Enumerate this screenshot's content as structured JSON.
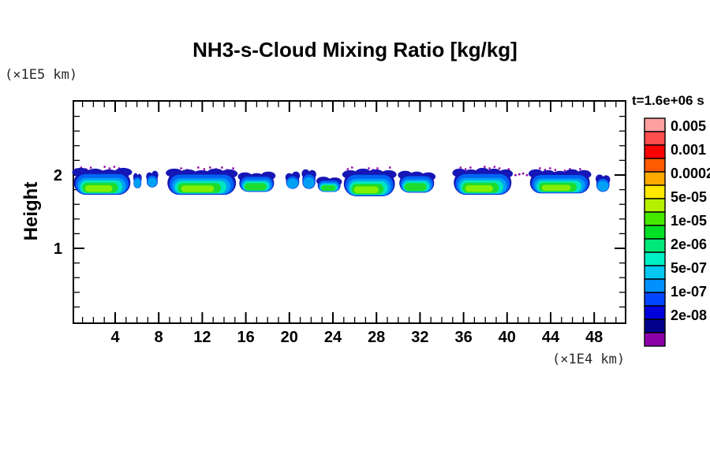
{
  "title": "NH3-s-Cloud Mixing Ratio [kg/kg]",
  "y_axis_unit": "(×1E5 km)",
  "x_axis_unit": "(×1E4 km)",
  "ylabel": "Height",
  "legend": {
    "time_label": "t=1.6e+06 s",
    "labels": [
      "0.005",
      "0.001",
      "0.0002",
      "5e-05",
      "1e-05",
      "2e-06",
      "5e-07",
      "1e-07",
      "2e-08"
    ],
    "colors": [
      "#FFA0A0",
      "#FF4E4E",
      "#FF0000",
      "#FF5A00",
      "#FFAA00",
      "#FFE800",
      "#B4F000",
      "#46E800",
      "#00E126",
      "#00E87A",
      "#00EFC4",
      "#00C8F0",
      "#0091FF",
      "#0046FF",
      "#0000DC",
      "#00008C",
      "#8C00A8"
    ]
  },
  "chart_data": {
    "type": "heatmap",
    "title": "NH3-s-Cloud Mixing Ratio [kg/kg]",
    "xlabel": "(×1E4 km)",
    "ylabel": "Height (×1E5 km)",
    "time_label": "t=1.6e+06 s",
    "xlim": [
      0,
      50.9
    ],
    "ylim": [
      0,
      3.03
    ],
    "x_major_ticks": [
      4,
      8,
      12,
      16,
      20,
      24,
      28,
      32,
      36,
      40,
      44,
      48
    ],
    "x_minor_step": 1,
    "y_major_ticks": [
      1,
      2
    ],
    "y_minor_step": 0.2,
    "grid": false,
    "legend_position": "right",
    "levels_kg_per_kg": [
      2e-08,
      1e-07,
      5e-07,
      2e-06,
      1e-05,
      5e-05,
      0.0002,
      0.001,
      0.005
    ],
    "cloud_band_height_range": [
      1.72,
      2.07
    ],
    "clouds": [
      {
        "x0": 0.2,
        "x1": 5.4,
        "top": 2.06,
        "bot": 1.73,
        "tier": 3,
        "speck": true
      },
      {
        "x0": 5.7,
        "x1": 6.4,
        "top": 2.0,
        "bot": 1.82,
        "tier": 1
      },
      {
        "x0": 6.9,
        "x1": 7.9,
        "top": 2.02,
        "bot": 1.83,
        "tier": 1
      },
      {
        "x0": 8.8,
        "x1": 15.1,
        "top": 2.05,
        "bot": 1.73,
        "tier": 3,
        "speck": true
      },
      {
        "x0": 15.4,
        "x1": 18.6,
        "top": 2.01,
        "bot": 1.77,
        "tier": 2
      },
      {
        "x0": 19.7,
        "x1": 20.9,
        "top": 2.01,
        "bot": 1.81,
        "tier": 1
      },
      {
        "x0": 21.2,
        "x1": 22.4,
        "top": 2.04,
        "bot": 1.81,
        "tier": 1
      },
      {
        "x0": 22.6,
        "x1": 24.7,
        "top": 1.95,
        "bot": 1.77,
        "tier": 2
      },
      {
        "x0": 25.0,
        "x1": 29.7,
        "top": 2.05,
        "bot": 1.71,
        "tier": 3,
        "speck": true
      },
      {
        "x0": 30.1,
        "x1": 33.3,
        "top": 2.02,
        "bot": 1.76,
        "tier": 2
      },
      {
        "x0": 35.1,
        "x1": 40.4,
        "top": 2.06,
        "bot": 1.73,
        "tier": 3,
        "speck": true
      },
      {
        "x0": 40.6,
        "x1": 42.0,
        "top": 2.02,
        "bot": 1.98,
        "tier": 0
      },
      {
        "x0": 42.1,
        "x1": 47.6,
        "top": 2.04,
        "bot": 1.75,
        "tier": 3,
        "speck": true
      },
      {
        "x0": 48.2,
        "x1": 49.4,
        "top": 1.98,
        "bot": 1.77,
        "tier": 1
      }
    ],
    "cloud_palette": {
      "outline_purple": "#9000A8",
      "edge_navy": "#1616B6",
      "blue": "#0064F5",
      "light_blue": "#00A0F5",
      "cyan": "#00E6C3",
      "green": "#1EDC2E",
      "core_bright": "#82F000"
    }
  }
}
